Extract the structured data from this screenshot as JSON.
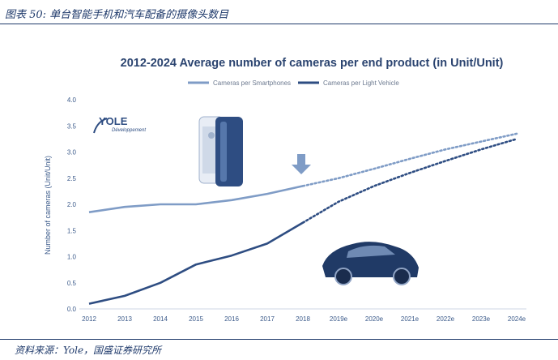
{
  "figure": {
    "caption": "图表 50: 单台智能手机和汽车配备的摄像头数目",
    "source": "资料来源：Yole，国盛证券研究所"
  },
  "logo": {
    "name": "YOLE",
    "tagline": "Développement"
  },
  "colors": {
    "smartphones": "#7f9cc6",
    "light_vehicle": "#2e4d82",
    "title": "#2b4470",
    "axis_text": "#3b5a8a",
    "grid": "#d6dde9",
    "header": "#1f3a6b"
  },
  "chart_data": {
    "type": "line",
    "title": "2012-2024 Average number of cameras per end product (in Unit/Unit)",
    "xlabel": "",
    "ylabel": "Number of cameras (Unit/Unit)",
    "categories": [
      "2012",
      "2013",
      "2014",
      "2015",
      "2016",
      "2017",
      "2018",
      "2019e",
      "2020e",
      "2021e",
      "2022e",
      "2023e",
      "2024e"
    ],
    "ylim": [
      0,
      4.0
    ],
    "yticks": [
      "0.0",
      "0.5",
      "1.0",
      "1.5",
      "2.0",
      "2.5",
      "3.0",
      "3.5",
      "4.0"
    ],
    "grid": false,
    "legend_position": "top",
    "forecast_from": "2018",
    "series": [
      {
        "name": "Cameras per Smartphones",
        "values": [
          1.85,
          1.95,
          2.0,
          2.0,
          2.08,
          2.2,
          2.35,
          2.5,
          2.68,
          2.87,
          3.05,
          3.2,
          3.35
        ]
      },
      {
        "name": "Cameras per Light Vehicle",
        "values": [
          0.1,
          0.25,
          0.5,
          0.85,
          1.02,
          1.25,
          1.65,
          2.05,
          2.35,
          2.6,
          2.83,
          3.05,
          3.25
        ]
      }
    ]
  }
}
